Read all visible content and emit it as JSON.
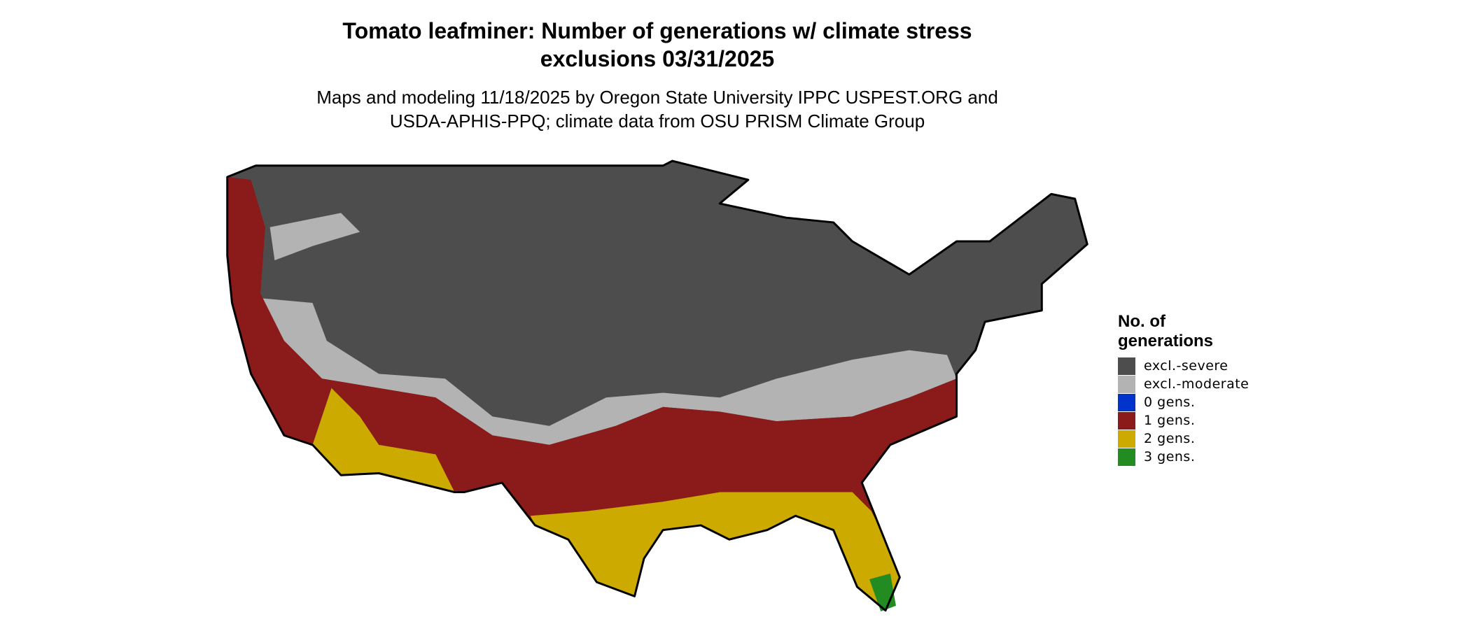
{
  "header": {
    "title": "Tomato leafminer: Number of generations w/ climate stress exclusions 03/31/2025",
    "subtitle": "Maps and modeling 11/18/2025 by Oregon State University IPPC USPEST.ORG and USDA-APHIS-PPQ; climate data from OSU PRISM Climate Group"
  },
  "legend": {
    "title": "No. of generations",
    "items": [
      {
        "label": "excl.-severe",
        "color": "#4d4d4d"
      },
      {
        "label": "excl.-moderate",
        "color": "#b3b3b3"
      },
      {
        "label": "0 gens.",
        "color": "#0033cc"
      },
      {
        "label": "1 gens.",
        "color": "#8b1a1a"
      },
      {
        "label": "2 gens.",
        "color": "#ccaa00"
      },
      {
        "label": "3 gens.",
        "color": "#228b22"
      }
    ]
  }
}
